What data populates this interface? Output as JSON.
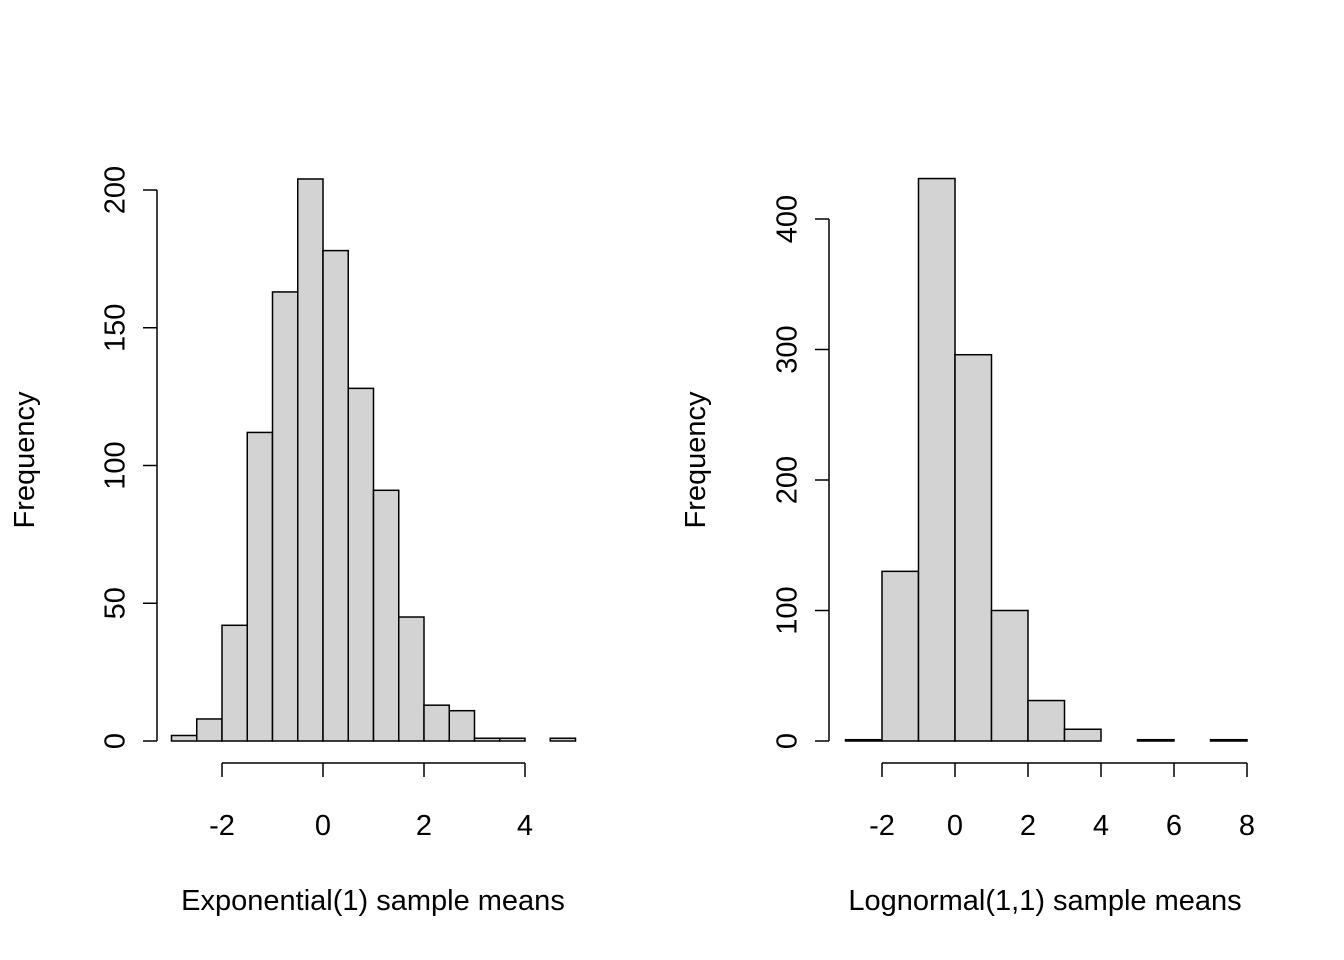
{
  "chart_data": [
    {
      "type": "bar",
      "xlabel": "Exponential(1) sample means",
      "ylabel": "Frequency",
      "bin_edges": [
        -3,
        -2.5,
        -2,
        -1.5,
        -1,
        -0.5,
        0,
        0.5,
        1,
        1.5,
        2,
        2.5,
        3,
        3.5,
        4,
        4.5,
        5
      ],
      "values": [
        2,
        8,
        42,
        112,
        163,
        204,
        178,
        128,
        91,
        45,
        13,
        11,
        1,
        1,
        0,
        1
      ],
      "xticks": [
        -2,
        0,
        2,
        4
      ],
      "yticks": [
        0,
        50,
        100,
        150,
        200
      ],
      "xlim": [
        -3,
        5
      ],
      "ylim": [
        0,
        200
      ],
      "bar_color": "#d3d3d3"
    },
    {
      "type": "bar",
      "xlabel": "Lognormal(1,1) sample means",
      "ylabel": "Frequency",
      "bin_edges": [
        -3,
        -2,
        -1,
        0,
        1,
        2,
        3,
        4,
        5,
        6,
        7,
        8
      ],
      "values": [
        1,
        130,
        431,
        296,
        100,
        31,
        9,
        0,
        1,
        0,
        1
      ],
      "xticks": [
        -2,
        0,
        2,
        4,
        6,
        8
      ],
      "yticks": [
        0,
        100,
        200,
        300,
        400
      ],
      "xlim": [
        -3,
        8
      ],
      "ylim": [
        0,
        400
      ],
      "bar_color": "#d3d3d3"
    }
  ]
}
